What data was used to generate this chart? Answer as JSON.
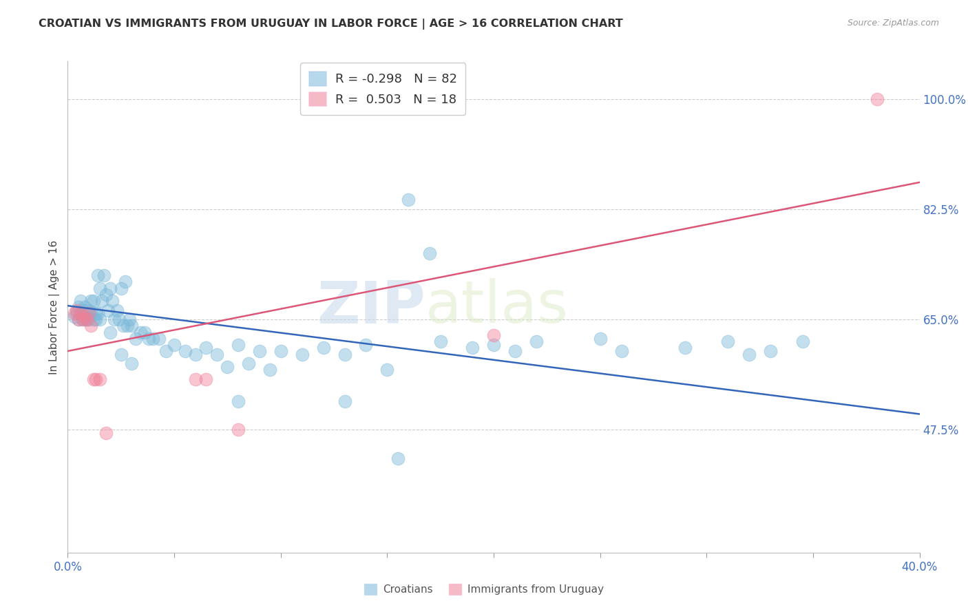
{
  "title": "CROATIAN VS IMMIGRANTS FROM URUGUAY IN LABOR FORCE | AGE > 16 CORRELATION CHART",
  "source": "Source: ZipAtlas.com",
  "ylabel": "In Labor Force | Age > 16",
  "xlim": [
    0.0,
    0.4
  ],
  "ylim": [
    0.28,
    1.06
  ],
  "ytick_labels_shown": [
    0.475,
    0.65,
    0.825,
    1.0
  ],
  "xticks": [
    0.0,
    0.05,
    0.1,
    0.15,
    0.2,
    0.25,
    0.3,
    0.35,
    0.4
  ],
  "xtick_labels_shown": [
    0.0,
    0.4
  ],
  "grid_yticks": [
    1.0,
    0.825,
    0.65,
    0.475
  ],
  "blue_R": -0.298,
  "blue_N": 82,
  "pink_R": 0.503,
  "pink_N": 18,
  "blue_color": "#7ab8d9",
  "pink_color": "#f08098",
  "blue_line_color": "#3366bb",
  "pink_line_color": "#dd5577",
  "watermark_zip": "ZIP",
  "watermark_atlas": "atlas",
  "blue_line_x0": 0.0,
  "blue_line_x1": 0.4,
  "blue_line_y0": 0.672,
  "blue_line_y1": 0.5,
  "pink_line_x0": 0.0,
  "pink_line_x1": 0.4,
  "pink_line_y0": 0.6,
  "pink_line_y1": 0.868,
  "blue_scatter_x": [
    0.003,
    0.004,
    0.005,
    0.005,
    0.006,
    0.006,
    0.007,
    0.007,
    0.008,
    0.008,
    0.009,
    0.009,
    0.01,
    0.01,
    0.011,
    0.011,
    0.012,
    0.012,
    0.013,
    0.013,
    0.014,
    0.014,
    0.015,
    0.015,
    0.016,
    0.017,
    0.018,
    0.019,
    0.02,
    0.021,
    0.022,
    0.023,
    0.024,
    0.025,
    0.026,
    0.027,
    0.028,
    0.029,
    0.03,
    0.032,
    0.034,
    0.036,
    0.038,
    0.04,
    0.043,
    0.046,
    0.05,
    0.055,
    0.06,
    0.065,
    0.07,
    0.075,
    0.08,
    0.085,
    0.09,
    0.095,
    0.1,
    0.11,
    0.12,
    0.13,
    0.14,
    0.15,
    0.16,
    0.17,
    0.175,
    0.19,
    0.2,
    0.21,
    0.22,
    0.25,
    0.26,
    0.29,
    0.31,
    0.33,
    0.345,
    0.02,
    0.025,
    0.03,
    0.08,
    0.13,
    0.155,
    0.32
  ],
  "blue_scatter_y": [
    0.655,
    0.66,
    0.65,
    0.67,
    0.66,
    0.68,
    0.65,
    0.665,
    0.65,
    0.67,
    0.66,
    0.65,
    0.665,
    0.65,
    0.68,
    0.66,
    0.65,
    0.68,
    0.66,
    0.65,
    0.66,
    0.72,
    0.7,
    0.65,
    0.68,
    0.72,
    0.69,
    0.665,
    0.7,
    0.68,
    0.65,
    0.665,
    0.65,
    0.7,
    0.64,
    0.71,
    0.64,
    0.65,
    0.64,
    0.62,
    0.63,
    0.63,
    0.62,
    0.62,
    0.62,
    0.6,
    0.61,
    0.6,
    0.595,
    0.605,
    0.595,
    0.575,
    0.61,
    0.58,
    0.6,
    0.57,
    0.6,
    0.595,
    0.605,
    0.595,
    0.61,
    0.57,
    0.84,
    0.755,
    0.615,
    0.605,
    0.61,
    0.6,
    0.615,
    0.62,
    0.6,
    0.605,
    0.615,
    0.6,
    0.615,
    0.63,
    0.595,
    0.58,
    0.52,
    0.52,
    0.43,
    0.595
  ],
  "pink_scatter_x": [
    0.003,
    0.004,
    0.005,
    0.006,
    0.007,
    0.008,
    0.009,
    0.01,
    0.011,
    0.012,
    0.013,
    0.015,
    0.018,
    0.06,
    0.065,
    0.08,
    0.2,
    0.38
  ],
  "pink_scatter_y": [
    0.66,
    0.665,
    0.65,
    0.66,
    0.65,
    0.655,
    0.65,
    0.66,
    0.64,
    0.555,
    0.555,
    0.555,
    0.47,
    0.555,
    0.555,
    0.475,
    0.625,
    1.0
  ]
}
